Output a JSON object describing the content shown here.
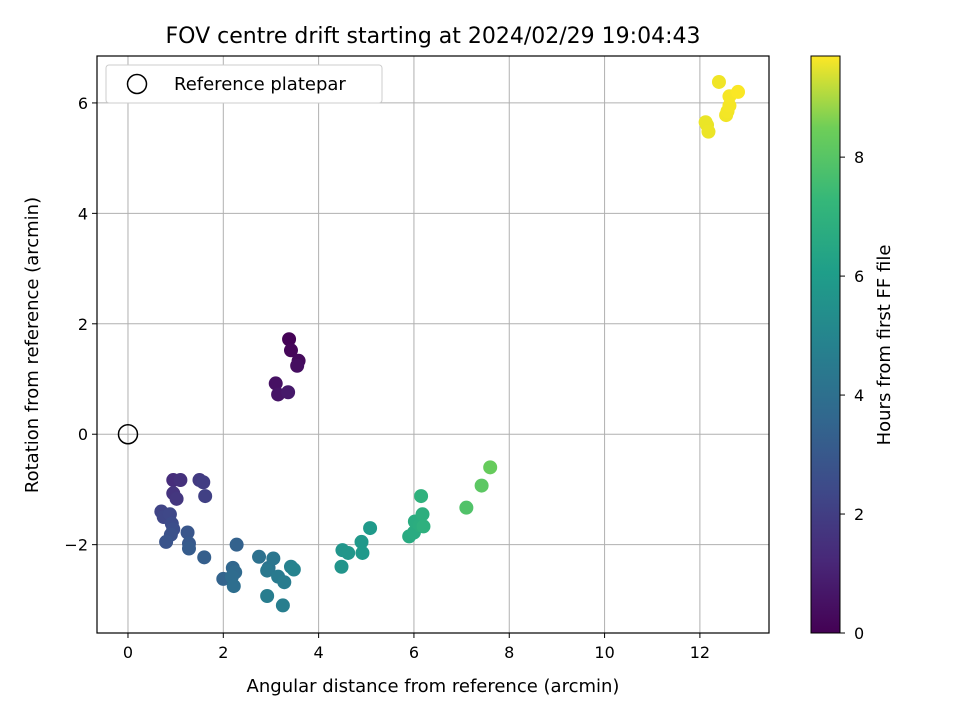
{
  "chart_data": {
    "type": "scatter",
    "title": "FOV centre drift starting at 2024/02/29 19:04:43",
    "xlabel": "Angular distance from reference (arcmin)",
    "ylabel": "Rotation from reference (arcmin)",
    "xlim": [
      -0.65,
      13.45
    ],
    "ylim": [
      -3.6,
      6.85
    ],
    "xticks": [
      0,
      2,
      4,
      6,
      8,
      10,
      12
    ],
    "yticks": [
      -2,
      0,
      2,
      4,
      6
    ],
    "grid": true,
    "legend": {
      "placement": "upper left",
      "entries": [
        "Reference platepar"
      ]
    },
    "reference_point": {
      "x": 0,
      "y": 0
    },
    "colorbar": {
      "label": "Hours from first FF file",
      "range": [
        0,
        9.7
      ],
      "ticks": [
        0,
        2,
        4,
        6,
        8
      ],
      "colormap": "viridis"
    },
    "points": [
      {
        "x": 3.38,
        "y": 1.72,
        "t": 0.05
      },
      {
        "x": 3.42,
        "y": 1.52,
        "t": 0.15
      },
      {
        "x": 3.58,
        "y": 1.33,
        "t": 0.25
      },
      {
        "x": 3.55,
        "y": 1.24,
        "t": 0.35
      },
      {
        "x": 3.1,
        "y": 0.92,
        "t": 0.45
      },
      {
        "x": 3.15,
        "y": 0.72,
        "t": 0.55
      },
      {
        "x": 3.36,
        "y": 0.76,
        "t": 0.65
      },
      {
        "x": 0.95,
        "y": -0.83,
        "t": 1.25
      },
      {
        "x": 1.1,
        "y": -0.83,
        "t": 1.35
      },
      {
        "x": 0.95,
        "y": -1.07,
        "t": 1.45
      },
      {
        "x": 1.02,
        "y": -1.17,
        "t": 1.55
      },
      {
        "x": 1.5,
        "y": -0.83,
        "t": 1.65
      },
      {
        "x": 1.58,
        "y": -0.87,
        "t": 1.75
      },
      {
        "x": 1.62,
        "y": -1.12,
        "t": 1.85
      },
      {
        "x": 0.7,
        "y": -1.4,
        "t": 1.95
      },
      {
        "x": 0.75,
        "y": -1.5,
        "t": 2.05
      },
      {
        "x": 0.88,
        "y": -1.45,
        "t": 2.1
      },
      {
        "x": 0.92,
        "y": -1.62,
        "t": 2.2
      },
      {
        "x": 0.95,
        "y": -1.72,
        "t": 2.3
      },
      {
        "x": 0.9,
        "y": -1.82,
        "t": 2.4
      },
      {
        "x": 0.8,
        "y": -1.95,
        "t": 2.5
      },
      {
        "x": 1.25,
        "y": -1.78,
        "t": 2.6
      },
      {
        "x": 1.28,
        "y": -1.98,
        "t": 2.7
      },
      {
        "x": 1.28,
        "y": -2.07,
        "t": 2.8
      },
      {
        "x": 1.6,
        "y": -2.23,
        "t": 2.9
      },
      {
        "x": 2.28,
        "y": -2.0,
        "t": 3.0
      },
      {
        "x": 2.0,
        "y": -2.62,
        "t": 3.1
      },
      {
        "x": 2.2,
        "y": -2.42,
        "t": 3.2
      },
      {
        "x": 2.25,
        "y": -2.5,
        "t": 3.3
      },
      {
        "x": 2.18,
        "y": -2.58,
        "t": 3.4
      },
      {
        "x": 2.22,
        "y": -2.75,
        "t": 3.5
      },
      {
        "x": 2.75,
        "y": -2.22,
        "t": 3.6
      },
      {
        "x": 2.95,
        "y": -2.42,
        "t": 3.7
      },
      {
        "x": 3.05,
        "y": -2.25,
        "t": 3.8
      },
      {
        "x": 2.92,
        "y": -2.47,
        "t": 3.9
      },
      {
        "x": 3.15,
        "y": -2.58,
        "t": 4.0
      },
      {
        "x": 3.28,
        "y": -2.68,
        "t": 4.05
      },
      {
        "x": 2.92,
        "y": -2.93,
        "t": 4.1
      },
      {
        "x": 3.25,
        "y": -3.1,
        "t": 4.15
      },
      {
        "x": 3.42,
        "y": -2.4,
        "t": 4.25
      },
      {
        "x": 3.48,
        "y": -2.45,
        "t": 4.35
      },
      {
        "x": 4.48,
        "y": -2.4,
        "t": 5.0
      },
      {
        "x": 4.5,
        "y": -2.1,
        "t": 5.05
      },
      {
        "x": 4.62,
        "y": -2.15,
        "t": 5.1
      },
      {
        "x": 4.9,
        "y": -1.95,
        "t": 5.15
      },
      {
        "x": 4.92,
        "y": -2.15,
        "t": 5.2
      },
      {
        "x": 5.08,
        "y": -1.7,
        "t": 5.25
      },
      {
        "x": 5.9,
        "y": -1.85,
        "t": 5.9
      },
      {
        "x": 6.0,
        "y": -1.78,
        "t": 5.95
      },
      {
        "x": 6.02,
        "y": -1.58,
        "t": 6.0
      },
      {
        "x": 6.12,
        "y": -1.65,
        "t": 6.05
      },
      {
        "x": 6.18,
        "y": -1.45,
        "t": 6.1
      },
      {
        "x": 6.2,
        "y": -1.67,
        "t": 6.15
      },
      {
        "x": 6.15,
        "y": -1.12,
        "t": 6.2
      },
      {
        "x": 7.1,
        "y": -1.33,
        "t": 7.0
      },
      {
        "x": 7.42,
        "y": -0.93,
        "t": 7.2
      },
      {
        "x": 7.6,
        "y": -0.6,
        "t": 7.4
      },
      {
        "x": 12.15,
        "y": 5.6,
        "t": 9.4
      },
      {
        "x": 12.12,
        "y": 5.65,
        "t": 9.42
      },
      {
        "x": 12.18,
        "y": 5.48,
        "t": 9.45
      },
      {
        "x": 12.4,
        "y": 6.38,
        "t": 9.5
      },
      {
        "x": 12.55,
        "y": 5.78,
        "t": 9.52
      },
      {
        "x": 12.58,
        "y": 5.85,
        "t": 9.55
      },
      {
        "x": 12.62,
        "y": 5.95,
        "t": 9.58
      },
      {
        "x": 12.62,
        "y": 6.12,
        "t": 9.6
      },
      {
        "x": 12.8,
        "y": 6.2,
        "t": 9.65
      }
    ]
  }
}
